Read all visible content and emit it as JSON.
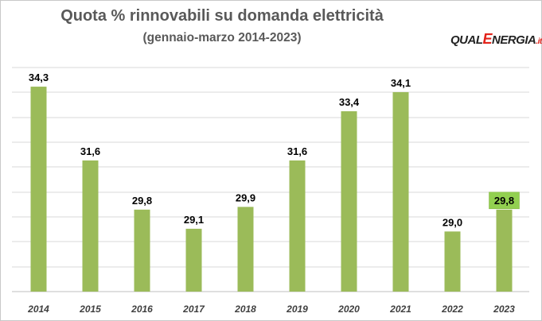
{
  "chart_data": {
    "type": "bar",
    "title": "Quota % rinnovabili su domanda elettricità",
    "subtitle": "(gennaio-marzo 2014-2023)",
    "categories": [
      "2014",
      "2015",
      "2016",
      "2017",
      "2018",
      "2019",
      "2020",
      "2021",
      "2022",
      "2023"
    ],
    "values": [
      34.3,
      31.6,
      29.8,
      29.1,
      29.9,
      31.6,
      33.4,
      34.1,
      29.0,
      29.8
    ],
    "value_labels": [
      "34,3",
      "31,6",
      "29,8",
      "29,1",
      "29,9",
      "31,6",
      "33,4",
      "34,1",
      "29,0",
      "29,8"
    ],
    "highlighted_index": 9,
    "ylim": [
      26.8,
      35.0
    ],
    "grid": true,
    "bar_color": "#9bbb59",
    "highlight_label_bg": "#92d050",
    "gridline_color": "#d9d9d9"
  },
  "logo": {
    "part1": "QUAL",
    "part2": "E",
    "part3": "NERGIA",
    "part4": ".it"
  }
}
